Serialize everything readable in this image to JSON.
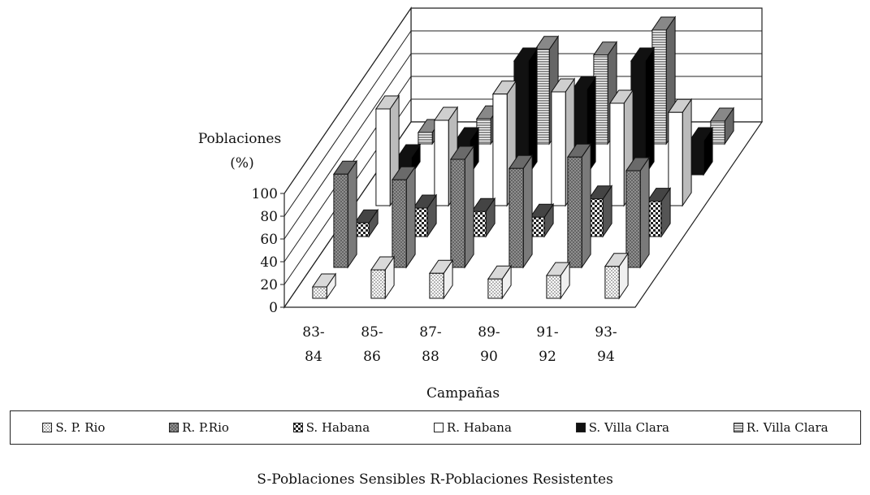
{
  "chart_data": {
    "type": "bar",
    "subtype": "3d-grouped",
    "ylabel_line1": "Poblaciones",
    "ylabel_line2": "(%)",
    "xlabel": "Campañas",
    "ylim": [
      0,
      100
    ],
    "yticks": [
      "0",
      "20",
      "40",
      "60",
      "80",
      "100"
    ],
    "categories": [
      {
        "line1": "83-",
        "line2": "84"
      },
      {
        "line1": "85-",
        "line2": "86"
      },
      {
        "line1": "87-",
        "line2": "88"
      },
      {
        "line1": "89-",
        "line2": "90"
      },
      {
        "line1": "91-",
        "line2": "92"
      },
      {
        "line1": "93-",
        "line2": "94"
      }
    ],
    "legend_position": "bottom",
    "series": [
      {
        "name": "S. P. Rio",
        "pattern": "dots",
        "values": [
          10,
          25,
          22,
          17,
          20,
          28
        ]
      },
      {
        "name": "R. P.Rio",
        "pattern": "crosshatch-gray",
        "values": [
          82,
          77,
          95,
          87,
          97,
          85
        ]
      },
      {
        "name": "S. Habana",
        "pattern": "checker",
        "values": [
          12,
          25,
          22,
          17,
          33,
          31
        ]
      },
      {
        "name": "R. Habana",
        "pattern": "white",
        "values": [
          85,
          75,
          98,
          100,
          90,
          82
        ]
      },
      {
        "name": "S. Villa Clara",
        "pattern": "black",
        "values": [
          15,
          30,
          100,
          75,
          100,
          30
        ]
      },
      {
        "name": "R. Villa Clara",
        "pattern": "hlines",
        "values": [
          10,
          22,
          83,
          78,
          100,
          20
        ]
      }
    ],
    "note": "S-Poblaciones Sensibles  R-Poblaciones Resistentes"
  }
}
